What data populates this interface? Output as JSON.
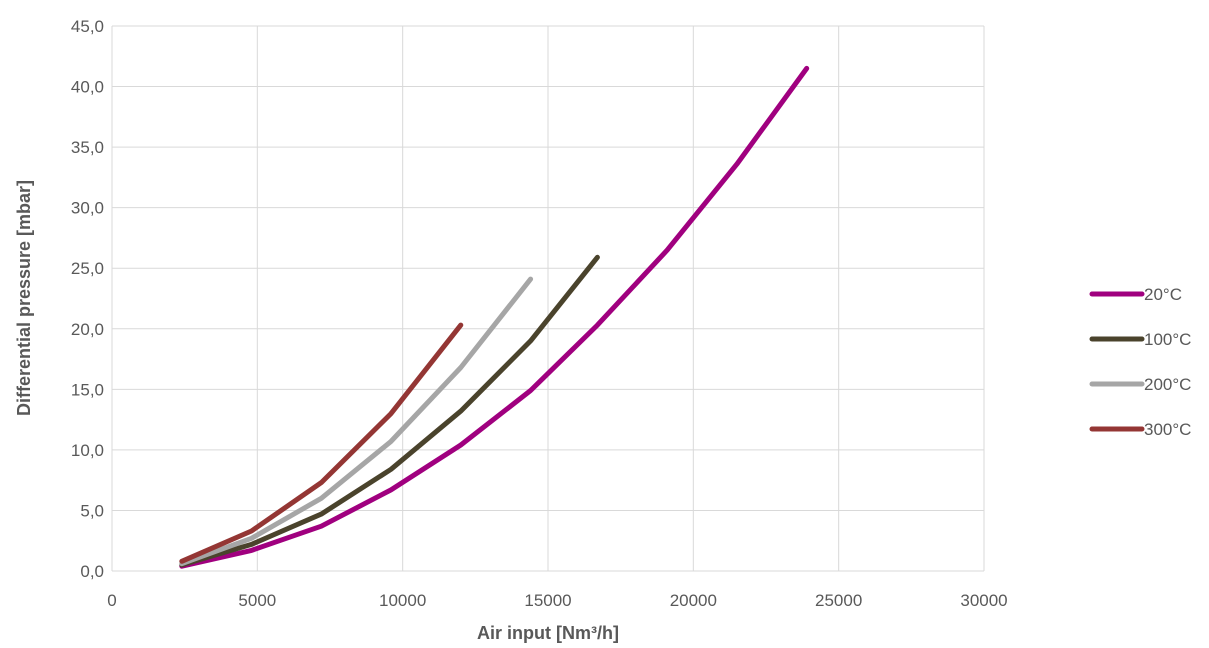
{
  "chart_data": {
    "type": "line",
    "title": "",
    "xlabel": "Air input [Nm³/h]",
    "ylabel": "Differential pressure [mbar]",
    "xlim": [
      0,
      30000
    ],
    "ylim": [
      0,
      45
    ],
    "x_ticks": [
      0,
      5000,
      10000,
      15000,
      20000,
      25000,
      30000
    ],
    "x_tick_labels": [
      "0",
      "5000",
      "10000",
      "15000",
      "20000",
      "25000",
      "30000"
    ],
    "y_ticks": [
      0,
      5,
      10,
      15,
      20,
      25,
      30,
      35,
      40,
      45
    ],
    "y_tick_labels": [
      "0,0",
      "5,0",
      "10,0",
      "15,0",
      "20,0",
      "25,0",
      "30,0",
      "35,0",
      "40,0",
      "45,0"
    ],
    "grid": true,
    "legend_position": "right",
    "series": [
      {
        "name": "20°C",
        "color": "#A0007F",
        "points": [
          [
            2400,
            0.4
          ],
          [
            4800,
            1.7
          ],
          [
            7200,
            3.7
          ],
          [
            9600,
            6.7
          ],
          [
            12000,
            10.4
          ],
          [
            14400,
            14.9
          ],
          [
            16700,
            20.3
          ],
          [
            19100,
            26.5
          ],
          [
            21500,
            33.6
          ],
          [
            23900,
            41.5
          ]
        ]
      },
      {
        "name": "100°C",
        "color": "#4A432C",
        "points": [
          [
            2400,
            0.5
          ],
          [
            4800,
            2.2
          ],
          [
            7200,
            4.7
          ],
          [
            9600,
            8.4
          ],
          [
            12000,
            13.2
          ],
          [
            14400,
            19.0
          ],
          [
            16700,
            25.9
          ]
        ]
      },
      {
        "name": "200°C",
        "color": "#A6A6A6",
        "points": [
          [
            2400,
            0.6
          ],
          [
            4800,
            2.7
          ],
          [
            7200,
            6.0
          ],
          [
            9600,
            10.7
          ],
          [
            12000,
            16.8
          ],
          [
            14400,
            24.1
          ]
        ]
      },
      {
        "name": "300°C",
        "color": "#943634",
        "points": [
          [
            2400,
            0.8
          ],
          [
            4800,
            3.3
          ],
          [
            7200,
            7.3
          ],
          [
            9600,
            13.0
          ],
          [
            12000,
            20.3
          ]
        ]
      }
    ]
  }
}
